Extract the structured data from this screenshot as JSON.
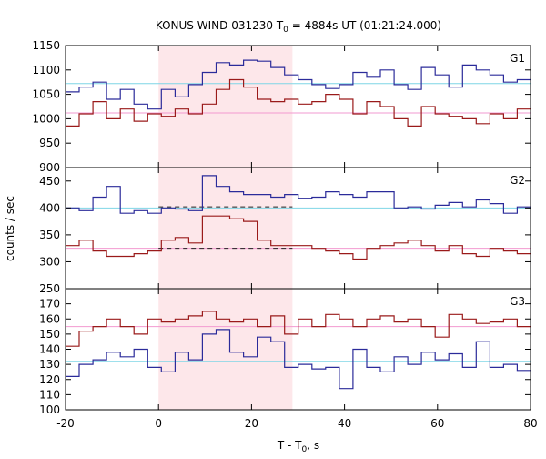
{
  "chart_data": {
    "type": "line",
    "title": "KONUS-WIND 031230 T",
    "title_sub": "0",
    "title_rest": " = 4884s UT (01:21:24.000)",
    "xlabel": "T - T",
    "xlabel_sub": "0",
    "xlabel_rest": ", s",
    "ylabel": "counts / sec",
    "xlim": [
      -20,
      80
    ],
    "x_ticks": [
      -20,
      0,
      20,
      40,
      60,
      80
    ],
    "x_tick_labels": [
      "-20",
      "0",
      "20",
      "40",
      "60",
      "80"
    ],
    "highlight_interval": [
      0,
      28.8
    ],
    "highlight_color": "#fde7ea",
    "colors": {
      "blue": "#2b2b9a",
      "red": "#9a1a1a",
      "cyan": "#7fd6e6",
      "pink": "#f29ad0"
    },
    "panels": [
      {
        "name": "G1",
        "ylim": [
          900,
          1150
        ],
        "y_ticks": [
          900,
          950,
          1000,
          1050,
          1100,
          1150
        ],
        "y_tick_labels": [
          "900",
          "950",
          "1000",
          "1050",
          "1100",
          "1150"
        ],
        "bin_start": -20,
        "bin_width": 2.944,
        "blue_values": [
          1055,
          1065,
          1075,
          1040,
          1060,
          1030,
          1020,
          1060,
          1045,
          1070,
          1095,
          1115,
          1110,
          1120,
          1118,
          1105,
          1090,
          1080,
          1070,
          1062,
          1070,
          1095,
          1085,
          1100,
          1070,
          1060,
          1105,
          1090,
          1065,
          1110,
          1100,
          1090,
          1075,
          1080,
          1030,
          1060,
          1085,
          1075,
          1080,
          1085,
          1065,
          1070,
          1100,
          1060,
          1050,
          1090,
          1080,
          1060,
          1080,
          1050,
          1080,
          1060,
          1075,
          1060
        ],
        "red_values": [
          985,
          1010,
          1035,
          1000,
          1020,
          995,
          1010,
          1005,
          1020,
          1010,
          1030,
          1060,
          1080,
          1065,
          1040,
          1035,
          1040,
          1030,
          1035,
          1050,
          1040,
          1010,
          1035,
          1025,
          1000,
          985,
          1025,
          1010,
          1005,
          1000,
          990,
          1010,
          1000,
          1020,
          970,
          1035,
          1015,
          1010,
          1040,
          1020,
          1015,
          1040,
          1020,
          1010,
          1035,
          1010,
          1025,
          1000,
          1010,
          1020,
          1015,
          995,
          1005,
          1000
        ],
        "blue_mean": 1072,
        "red_mean": 1012,
        "blue_sig_level": null,
        "red_sig_level": null
      },
      {
        "name": "G2",
        "ylim": [
          250,
          475
        ],
        "y_ticks": [
          250,
          300,
          350,
          400,
          450
        ],
        "y_tick_labels": [
          "250",
          "300",
          "350",
          "400",
          "450"
        ],
        "bin_start": -20,
        "bin_width": 2.944,
        "blue_values": [
          400,
          395,
          420,
          440,
          390,
          395,
          390,
          400,
          398,
          395,
          460,
          440,
          430,
          425,
          425,
          420,
          425,
          418,
          420,
          430,
          425,
          420,
          430,
          430,
          400,
          402,
          398,
          405,
          410,
          402,
          415,
          408,
          390,
          402,
          398,
          405,
          396,
          400,
          395,
          378,
          400,
          410,
          402,
          398,
          400,
          408,
          400,
          405,
          400,
          398,
          402,
          412,
          405,
          400
        ],
        "red_values": [
          330,
          340,
          320,
          310,
          310,
          315,
          320,
          340,
          345,
          335,
          385,
          385,
          380,
          375,
          340,
          330,
          330,
          330,
          325,
          320,
          315,
          305,
          325,
          330,
          335,
          340,
          330,
          320,
          330,
          315,
          310,
          325,
          320,
          315,
          340,
          325,
          320,
          340,
          325,
          330,
          320,
          335,
          330,
          325,
          340,
          325,
          320,
          325,
          320,
          315,
          325,
          335,
          320,
          325
        ],
        "blue_mean": 400,
        "red_mean": 325,
        "blue_sig_level": 402,
        "red_sig_level": 325
      },
      {
        "name": "G3",
        "ylim": [
          100,
          180
        ],
        "y_ticks": [
          100,
          110,
          120,
          130,
          140,
          150,
          160,
          170
        ],
        "y_tick_labels": [
          "100",
          "110",
          "120",
          "130",
          "140",
          "150",
          "160",
          "170"
        ],
        "bin_start": -20,
        "bin_width": 2.944,
        "blue_values": [
          122,
          130,
          133,
          138,
          135,
          140,
          128,
          125,
          138,
          133,
          150,
          153,
          138,
          135,
          148,
          145,
          128,
          130,
          127,
          128,
          114,
          140,
          128,
          125,
          135,
          130,
          138,
          133,
          137,
          128,
          145,
          128,
          130,
          126,
          125,
          128,
          130,
          125,
          126,
          127,
          131,
          130,
          132,
          128,
          133,
          127,
          124,
          130,
          126,
          135,
          130,
          128,
          125,
          127
        ],
        "red_values": [
          142,
          152,
          155,
          160,
          155,
          150,
          160,
          158,
          160,
          162,
          165,
          160,
          158,
          160,
          155,
          162,
          150,
          160,
          155,
          163,
          160,
          155,
          160,
          162,
          158,
          160,
          155,
          148,
          163,
          160,
          157,
          158,
          160,
          155,
          158,
          163,
          155,
          165,
          160,
          158,
          158,
          155,
          152,
          158,
          157,
          160,
          155,
          165,
          175,
          155,
          165,
          157,
          150,
          148
        ],
        "blue_mean": 132,
        "red_mean": 155,
        "blue_sig_level": null,
        "red_sig_level": null
      }
    ]
  }
}
